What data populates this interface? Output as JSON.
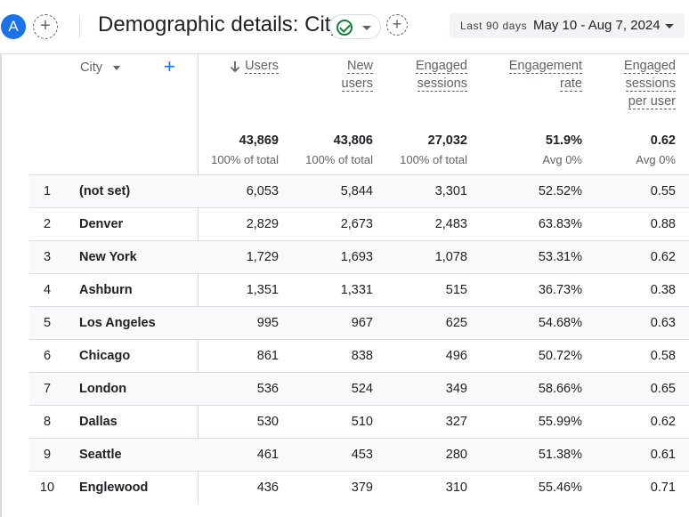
{
  "header": {
    "avatar_letter": "A",
    "add_symbol": "+",
    "title": "Demographic details: City",
    "date_range_label": "Last 90 days",
    "date_range_value": "May 10 - Aug 7, 2024"
  },
  "table": {
    "dimension_header": "City",
    "add_dimension_symbol": "+",
    "columns": [
      {
        "line1": "Users",
        "line2": "",
        "line3": "",
        "total": "43,869",
        "sub": "100% of total"
      },
      {
        "line1": "New",
        "line2": "users",
        "line3": "",
        "total": "43,806",
        "sub": "100% of total"
      },
      {
        "line1": "Engaged",
        "line2": "sessions",
        "line3": "",
        "total": "27,032",
        "sub": "100% of total"
      },
      {
        "line1": "Engagement",
        "line2": "rate",
        "line3": "",
        "total": "51.9%",
        "sub": "Avg 0%"
      },
      {
        "line1": "Engaged",
        "line2": "sessions",
        "line3": "per user",
        "total": "0.62",
        "sub": "Avg 0%"
      }
    ],
    "rows": [
      {
        "idx": "1",
        "city": "(not set)",
        "users": "6,053",
        "new_users": "5,844",
        "engaged_sessions": "3,301",
        "engagement_rate": "52.52%",
        "sessions_per_user": "0.55"
      },
      {
        "idx": "2",
        "city": "Denver",
        "users": "2,829",
        "new_users": "2,673",
        "engaged_sessions": "2,483",
        "engagement_rate": "63.83%",
        "sessions_per_user": "0.88"
      },
      {
        "idx": "3",
        "city": "New York",
        "users": "1,729",
        "new_users": "1,693",
        "engaged_sessions": "1,078",
        "engagement_rate": "53.31%",
        "sessions_per_user": "0.62"
      },
      {
        "idx": "4",
        "city": "Ashburn",
        "users": "1,351",
        "new_users": "1,331",
        "engaged_sessions": "515",
        "engagement_rate": "36.73%",
        "sessions_per_user": "0.38"
      },
      {
        "idx": "5",
        "city": "Los Angeles",
        "users": "995",
        "new_users": "967",
        "engaged_sessions": "625",
        "engagement_rate": "54.68%",
        "sessions_per_user": "0.63"
      },
      {
        "idx": "6",
        "city": "Chicago",
        "users": "861",
        "new_users": "838",
        "engaged_sessions": "496",
        "engagement_rate": "50.72%",
        "sessions_per_user": "0.58"
      },
      {
        "idx": "7",
        "city": "London",
        "users": "536",
        "new_users": "524",
        "engaged_sessions": "349",
        "engagement_rate": "58.66%",
        "sessions_per_user": "0.65"
      },
      {
        "idx": "8",
        "city": "Dallas",
        "users": "530",
        "new_users": "510",
        "engaged_sessions": "327",
        "engagement_rate": "55.99%",
        "sessions_per_user": "0.62"
      },
      {
        "idx": "9",
        "city": "Seattle",
        "users": "461",
        "new_users": "453",
        "engaged_sessions": "280",
        "engagement_rate": "51.38%",
        "sessions_per_user": "0.61"
      },
      {
        "idx": "10",
        "city": "Englewood",
        "users": "436",
        "new_users": "379",
        "engaged_sessions": "310",
        "engagement_rate": "55.46%",
        "sessions_per_user": "0.71"
      }
    ]
  },
  "colors": {
    "accent": "#1a73e8",
    "success": "#188038",
    "text": "#202124",
    "muted": "#5f6368"
  }
}
